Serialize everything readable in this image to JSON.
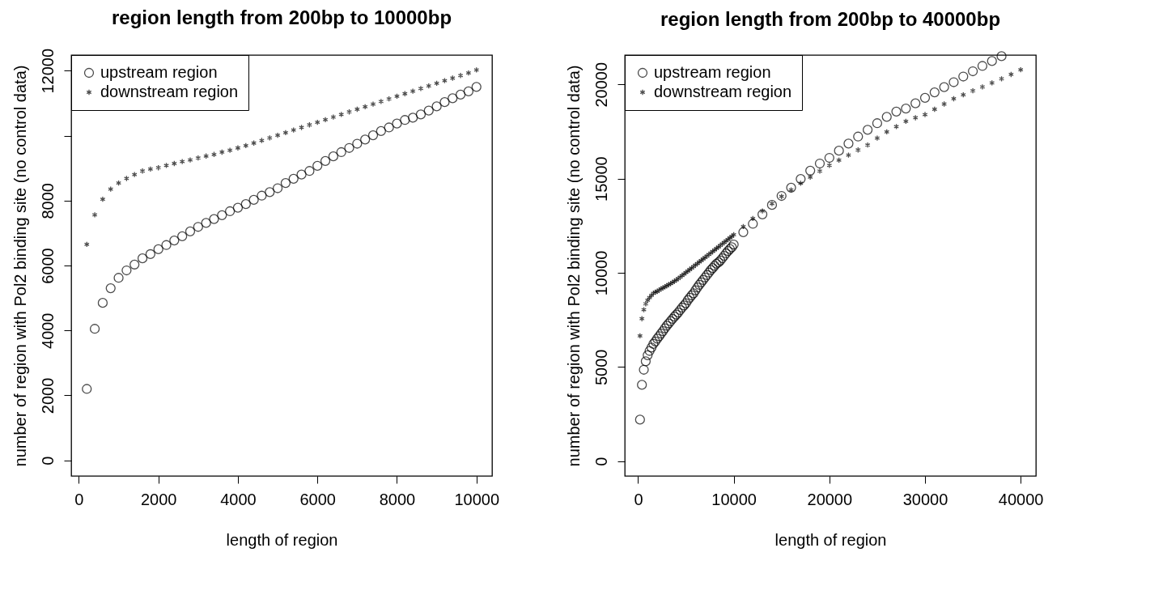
{
  "chart_data": [
    {
      "type": "scatter",
      "title": "region length from 200bp to 10000bp",
      "xlabel": "length of region",
      "ylabel": "number of region with Pol2 binding site (no control data)",
      "xlim": [
        -192,
        10392
      ],
      "ylim": [
        -480,
        12480
      ],
      "xticks": [
        0,
        2000,
        4000,
        6000,
        8000,
        10000
      ],
      "yticks": [
        0,
        2000,
        4000,
        6000,
        8000,
        {
          "value": 10000,
          "label": null
        },
        12000
      ],
      "grid": false,
      "legend": "top left",
      "series": [
        {
          "name": "upstream region",
          "color": "#000000",
          "marker": "circle",
          "x": [
            200,
            400,
            600,
            800,
            1000,
            1200,
            1400,
            1600,
            1800,
            2000,
            2200,
            2400,
            2600,
            2800,
            3000,
            3200,
            3400,
            3600,
            3800,
            4000,
            4200,
            4400,
            4600,
            4800,
            5000,
            5200,
            5400,
            5600,
            5800,
            6000,
            6200,
            6400,
            6600,
            6800,
            7000,
            7200,
            7400,
            7600,
            7800,
            8000,
            8200,
            8400,
            8600,
            8800,
            9000,
            9200,
            9400,
            9600,
            9800,
            10000
          ],
          "values": [
            2200,
            4050,
            4850,
            5300,
            5620,
            5850,
            6030,
            6220,
            6350,
            6500,
            6630,
            6770,
            6900,
            7050,
            7190,
            7310,
            7430,
            7550,
            7670,
            7780,
            7890,
            8020,
            8150,
            8260,
            8380,
            8540,
            8670,
            8800,
            8910,
            9070,
            9220,
            9360,
            9490,
            9620,
            9750,
            9880,
            10010,
            10140,
            10250,
            10370,
            10480,
            10550,
            10650,
            10770,
            10900,
            11030,
            11150,
            11260,
            11360,
            11500
          ]
        },
        {
          "name": "downstream region",
          "color": "#000000",
          "marker": "cross",
          "x": [
            200,
            400,
            600,
            800,
            1000,
            1200,
            1400,
            1600,
            1800,
            2000,
            2200,
            2400,
            2600,
            2800,
            3000,
            3200,
            3400,
            3600,
            3800,
            4000,
            4200,
            4400,
            4600,
            4800,
            5000,
            5200,
            5400,
            5600,
            5800,
            6000,
            6200,
            6400,
            6600,
            6800,
            7000,
            7200,
            7400,
            7600,
            7800,
            8000,
            8200,
            8400,
            8600,
            8800,
            9000,
            9200,
            9400,
            9600,
            9800,
            10000
          ],
          "values": [
            6650,
            7560,
            8040,
            8350,
            8540,
            8680,
            8800,
            8910,
            8970,
            9010,
            9080,
            9140,
            9200,
            9250,
            9310,
            9370,
            9420,
            9490,
            9550,
            9620,
            9690,
            9770,
            9850,
            9930,
            10010,
            10090,
            10170,
            10250,
            10330,
            10410,
            10490,
            10570,
            10650,
            10730,
            10810,
            10890,
            10970,
            11050,
            11130,
            11210,
            11290,
            11370,
            11450,
            11530,
            11610,
            11690,
            11770,
            11850,
            11930,
            12020
          ]
        }
      ]
    },
    {
      "type": "scatter",
      "title": "region length from 200bp to 40000bp",
      "xlabel": "length of region",
      "ylabel": "number of region with Pol2 binding site (no control data)",
      "xlim": [
        -1392,
        41592
      ],
      "ylim": [
        -790,
        21560
      ],
      "xticks": [
        0,
        10000,
        20000,
        30000,
        40000
      ],
      "yticks": [
        0,
        5000,
        10000,
        15000,
        20000
      ],
      "grid": false,
      "legend": "top left",
      "series": [
        {
          "name": "upstream region",
          "color": "#000000",
          "marker": "circle",
          "x": [
            200,
            400,
            600,
            800,
            1000,
            1200,
            1400,
            1600,
            1800,
            2000,
            2200,
            2400,
            2600,
            2800,
            3000,
            3200,
            3400,
            3600,
            3800,
            4000,
            4200,
            4400,
            4600,
            4800,
            5000,
            5200,
            5400,
            5600,
            5800,
            6000,
            6200,
            6400,
            6600,
            6800,
            7000,
            7200,
            7400,
            7600,
            7800,
            8000,
            8200,
            8400,
            8600,
            8800,
            9000,
            9200,
            9400,
            9600,
            9800,
            10000,
            11000,
            12000,
            13000,
            14000,
            15000,
            16000,
            17000,
            18000,
            19000,
            20000,
            21000,
            22000,
            23000,
            24000,
            25000,
            26000,
            27000,
            28000,
            29000,
            30000,
            31000,
            32000,
            33000,
            34000,
            35000,
            36000,
            37000,
            38000
          ],
          "values": [
            2200,
            4050,
            4850,
            5300,
            5620,
            5850,
            6030,
            6220,
            6350,
            6500,
            6630,
            6770,
            6900,
            7050,
            7190,
            7310,
            7430,
            7550,
            7670,
            7780,
            7890,
            8020,
            8150,
            8260,
            8380,
            8540,
            8670,
            8800,
            8910,
            9070,
            9220,
            9360,
            9490,
            9620,
            9750,
            9880,
            10010,
            10140,
            10250,
            10370,
            10480,
            10550,
            10650,
            10770,
            10900,
            11030,
            11150,
            11260,
            11360,
            11500,
            12150,
            12600,
            13100,
            13600,
            14080,
            14520,
            14980,
            15420,
            15800,
            16100,
            16480,
            16860,
            17230,
            17590,
            17940,
            18280,
            18560,
            18720,
            19000,
            19290,
            19580,
            19860,
            20120,
            20420,
            20700,
            20980,
            21240,
            21500
          ]
        },
        {
          "name": "downstream region",
          "color": "#000000",
          "marker": "cross",
          "x": [
            200,
            400,
            600,
            800,
            1000,
            1200,
            1400,
            1600,
            1800,
            2000,
            2200,
            2400,
            2600,
            2800,
            3000,
            3200,
            3400,
            3600,
            3800,
            4000,
            4200,
            4400,
            4600,
            4800,
            5000,
            5200,
            5400,
            5600,
            5800,
            6000,
            6200,
            6400,
            6600,
            6800,
            7000,
            7200,
            7400,
            7600,
            7800,
            8000,
            8200,
            8400,
            8600,
            8800,
            9000,
            9200,
            9400,
            9600,
            9800,
            10000,
            11000,
            12000,
            13000,
            14000,
            15000,
            16000,
            17000,
            18000,
            19000,
            20000,
            21000,
            22000,
            23000,
            24000,
            25000,
            26000,
            27000,
            28000,
            29000,
            30000,
            31000,
            32000,
            33000,
            34000,
            35000,
            36000,
            37000,
            38000,
            39000,
            40000
          ],
          "values": [
            6650,
            7560,
            8040,
            8350,
            8540,
            8680,
            8800,
            8910,
            8970,
            9010,
            9080,
            9140,
            9200,
            9250,
            9310,
            9370,
            9420,
            9490,
            9550,
            9620,
            9690,
            9770,
            9850,
            9930,
            10010,
            10090,
            10170,
            10250,
            10330,
            10410,
            10490,
            10570,
            10650,
            10730,
            10810,
            10890,
            10970,
            11050,
            11130,
            11210,
            11290,
            11370,
            11450,
            11530,
            11610,
            11690,
            11770,
            11850,
            11930,
            12020,
            12450,
            12880,
            13280,
            13670,
            14050,
            14400,
            14750,
            15080,
            15400,
            15700,
            15980,
            16250,
            16520,
            16780,
            17150,
            17480,
            17760,
            18040,
            18230,
            18400,
            18680,
            18960,
            19240,
            19450,
            19660,
            19870,
            20080,
            20300,
            20530,
            20780
          ]
        }
      ]
    }
  ]
}
